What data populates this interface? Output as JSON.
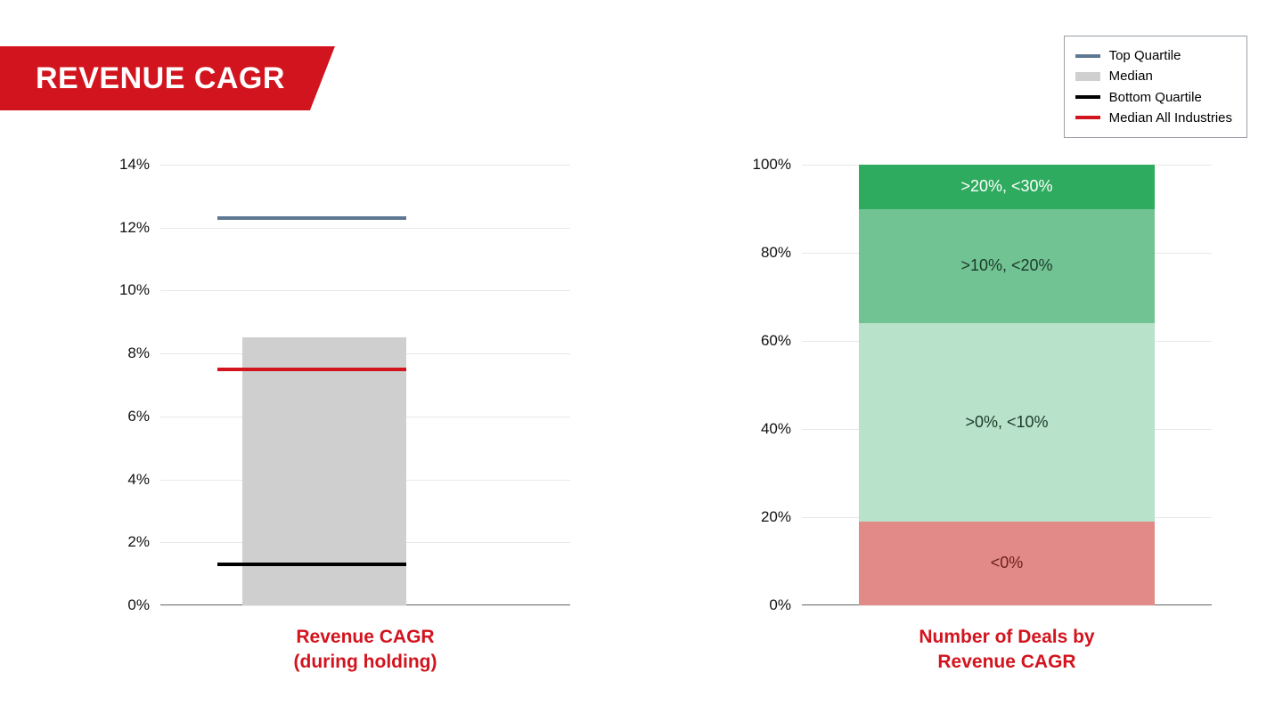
{
  "title": "REVENUE CAGR",
  "title_bg": "#d2141e",
  "title_color": "#ffffff",
  "legend": {
    "border_color": "#9aa0a6",
    "items": [
      {
        "label": "Top Quartile",
        "color": "#5e7893",
        "thickness": 4
      },
      {
        "label": "Median",
        "color": "#cfcfcf",
        "thickness": 10
      },
      {
        "label": "Bottom Quartile",
        "color": "#000000",
        "thickness": 4
      },
      {
        "label": "Median All Industries",
        "color": "#d2141e",
        "thickness": 4
      }
    ]
  },
  "left_chart": {
    "type": "quartile-bar",
    "xlabel_line1": "Revenue CAGR",
    "xlabel_line2": "(during holding)",
    "xlabel_color": "#d2141e",
    "ylim": [
      0,
      14
    ],
    "ytick_step": 2,
    "ytick_suffix": "%",
    "grid_color": "#e8e8e8",
    "tick_font_size": 17,
    "median_value": 8.5,
    "median_bar_color": "#cfcfcf",
    "bar_left_pct": 20,
    "bar_width_pct": 40,
    "markers": [
      {
        "name": "top-quartile",
        "value": 12.3,
        "color": "#5e7893",
        "left_pct": 14,
        "width_pct": 46
      },
      {
        "name": "median-all",
        "value": 7.5,
        "color": "#d2141e",
        "left_pct": 14,
        "width_pct": 46
      },
      {
        "name": "bottom-quartile",
        "value": 1.3,
        "color": "#000000",
        "left_pct": 14,
        "width_pct": 46
      }
    ]
  },
  "right_chart": {
    "type": "stacked-100",
    "xlabel_line1": "Number of Deals by",
    "xlabel_line2": "Revenue CAGR",
    "xlabel_color": "#d2141e",
    "ylim": [
      0,
      100
    ],
    "ytick_step": 20,
    "ytick_suffix": "%",
    "grid_color": "#e8e8e8",
    "tick_font_size": 17,
    "bar_left_pct": 14,
    "bar_width_pct": 72,
    "segments": [
      {
        "label": ">20%, <30%",
        "from": 90,
        "to": 100,
        "color": "#2eab5e",
        "text_color": "#ffffff"
      },
      {
        "label": ">10%, <20%",
        "from": 64,
        "to": 90,
        "color": "#72c393",
        "text_color": "#1b3a2a"
      },
      {
        "label": ">0%, <10%",
        "from": 19,
        "to": 64,
        "color": "#b8e2c9",
        "text_color": "#1b3a2a"
      },
      {
        "label": "<0%",
        "from": 0,
        "to": 19,
        "color": "#e28a87",
        "text_color": "#6d1f1f"
      }
    ]
  }
}
